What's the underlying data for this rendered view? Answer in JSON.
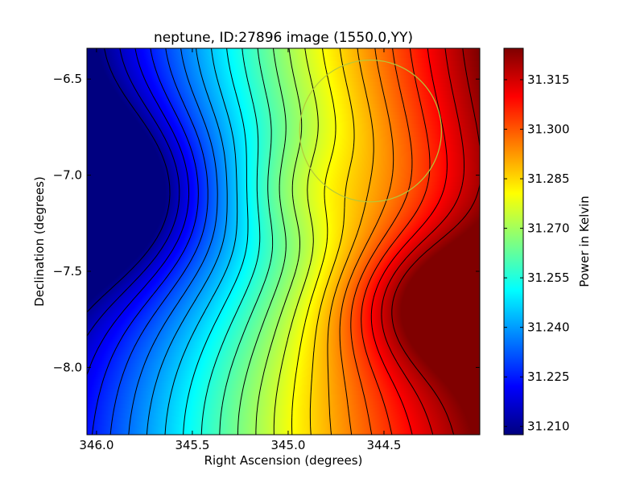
{
  "chart_data": {
    "type": "heatmap",
    "title": "neptune, ID:27896 image (1550.0,YY)",
    "xlabel": "Right Ascension (degrees)",
    "ylabel": "Declination (degrees)",
    "xlim": [
      346.05,
      344.0
    ],
    "ylim": [
      -8.35,
      -6.34
    ],
    "x_ticks": [
      346.0,
      345.5,
      345.0,
      344.5
    ],
    "x_tick_labels": [
      "346.0",
      "345.5",
      "345.0",
      "344.5"
    ],
    "y_ticks": [
      -6.5,
      -7.0,
      -7.5,
      -8.0
    ],
    "y_tick_labels": [
      "−6.5",
      "−7.0",
      "−7.5",
      "−8.0"
    ],
    "colorbar": {
      "label": "Power in Kelvin",
      "min": 31.2075,
      "max": 31.3245,
      "ticks": [
        31.21,
        31.225,
        31.24,
        31.255,
        31.27,
        31.285,
        31.3,
        31.315
      ],
      "tick_labels": [
        "31.210",
        "31.225",
        "31.240",
        "31.255",
        "31.270",
        "31.285",
        "31.300",
        "31.315"
      ],
      "colormap": "jet"
    },
    "extrema": [
      {
        "kind": "minimum",
        "ra": 346.05,
        "dec": -7.1,
        "value": 31.2075
      },
      {
        "kind": "maximum",
        "ra": 344.2,
        "dec": -7.65,
        "value": 31.3245
      }
    ],
    "contour_levels": [
      31.21,
      31.215,
      31.22,
      31.225,
      31.23,
      31.235,
      31.24,
      31.245,
      31.25,
      31.255,
      31.26,
      31.265,
      31.27,
      31.275,
      31.28,
      31.285,
      31.29,
      31.295,
      31.3,
      31.305,
      31.31,
      31.315,
      31.32
    ],
    "circle": {
      "ra_center": 344.57,
      "dec_center": -6.77,
      "radius_deg": 0.37,
      "color": "#b5c83a"
    }
  }
}
